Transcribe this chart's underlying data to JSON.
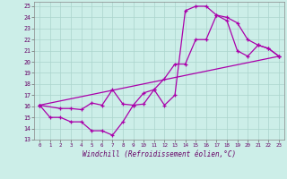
{
  "xlabel": "Windchill (Refroidissement éolien,°C)",
  "bg_color": "#cceee8",
  "grid_color": "#aad4cc",
  "line_color": "#aa00aa",
  "xlim": [
    -0.5,
    23.5
  ],
  "ylim": [
    13,
    25.4
  ],
  "yticks": [
    13,
    14,
    15,
    16,
    17,
    18,
    19,
    20,
    21,
    22,
    23,
    24,
    25
  ],
  "xticks": [
    0,
    1,
    2,
    3,
    4,
    5,
    6,
    7,
    8,
    9,
    10,
    11,
    12,
    13,
    14,
    15,
    16,
    17,
    18,
    19,
    20,
    21,
    22,
    23
  ],
  "line1_x": [
    0,
    1,
    2,
    3,
    4,
    5,
    6,
    7,
    8,
    9,
    10,
    11,
    12,
    13,
    14,
    15,
    16,
    17,
    18,
    19,
    20,
    21,
    22,
    23
  ],
  "line1_y": [
    16.1,
    15.0,
    15.0,
    14.6,
    14.6,
    13.8,
    13.8,
    13.4,
    14.6,
    16.1,
    16.2,
    17.5,
    16.1,
    17.0,
    24.6,
    25.0,
    25.0,
    24.2,
    23.7,
    21.0,
    20.5,
    21.5,
    21.2,
    20.5
  ],
  "line2_x": [
    0,
    2,
    3,
    4,
    5,
    6,
    7,
    8,
    9,
    10,
    11,
    12,
    13,
    14,
    15,
    16,
    17,
    18,
    19,
    20,
    21,
    22,
    23
  ],
  "line2_y": [
    16.1,
    15.8,
    15.8,
    15.7,
    16.3,
    16.1,
    17.5,
    16.2,
    16.1,
    17.2,
    17.5,
    18.5,
    19.8,
    19.8,
    22.0,
    22.0,
    24.2,
    24.0,
    23.5,
    22.0,
    21.5,
    21.2,
    20.5
  ],
  "line3_x": [
    0,
    23
  ],
  "line3_y": [
    16.1,
    20.5
  ]
}
